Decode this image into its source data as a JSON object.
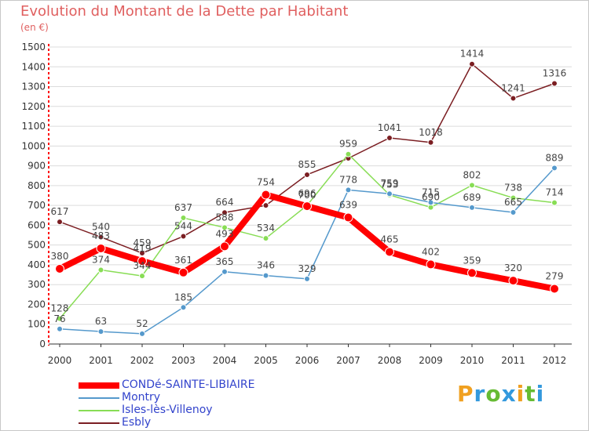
{
  "title": "Evolution du Montant de la Dette par Habitant",
  "subtitle": "(en €)",
  "brand": {
    "letters": [
      "P",
      "r",
      "o",
      "x",
      "i",
      "t",
      "i"
    ],
    "colors": [
      "#f0a020",
      "#3399dd",
      "#66bb33",
      "#3399dd",
      "#f0a020",
      "#66bb33",
      "#3399dd"
    ]
  },
  "chart_data": {
    "type": "line",
    "x": [
      "2000",
      "2001",
      "2002",
      "2003",
      "2004",
      "2005",
      "2006",
      "2007",
      "2008",
      "2009",
      "2010",
      "2011",
      "2012"
    ],
    "ylim": [
      0,
      1500
    ],
    "yticks": [
      0,
      100,
      200,
      300,
      400,
      500,
      600,
      700,
      800,
      900,
      1000,
      1100,
      1200,
      1300,
      1400,
      1500
    ],
    "grid": "horizontal",
    "legend_position": "bottom-left",
    "series": [
      {
        "name": "Esbly",
        "color": "#7b1e22",
        "width": 1.5,
        "values": [
          617,
          540,
          459,
          544,
          664,
          700,
          855,
          938,
          1041,
          1018,
          1414,
          1241,
          1316
        ],
        "labels": [
          "617",
          "540",
          "459",
          "544",
          "664",
          "",
          "855",
          "",
          "1041",
          "1018",
          "1414",
          "1241",
          "1316"
        ]
      },
      {
        "name": "Isles-lès-Villenoy",
        "color": "#88dd55",
        "width": 1.5,
        "values": [
          128,
          374,
          344,
          637,
          588,
          534,
          700,
          959,
          753,
          690,
          802,
          738,
          714
        ],
        "labels": [
          "128",
          "374",
          "344",
          "637",
          "588",
          "534",
          "700",
          "959",
          "753",
          "690",
          "802",
          "738",
          "714"
        ]
      },
      {
        "name": "Montry",
        "color": "#5599cc",
        "width": 1.5,
        "values": [
          76,
          63,
          52,
          185,
          365,
          346,
          329,
          778,
          759,
          715,
          689,
          665,
          889
        ],
        "labels": [
          "76",
          "63",
          "52",
          "185",
          "365",
          "346",
          "329",
          "778",
          "759",
          "715",
          "689",
          "665",
          "889"
        ]
      },
      {
        "name": "CONDé-SAINTE-LIBIAIRE",
        "color": "#ff0000",
        "width": 8,
        "values": [
          380,
          483,
          419,
          361,
          493,
          754,
          696,
          639,
          465,
          402,
          359,
          320,
          279
        ],
        "labels": [
          "380",
          "483",
          "419",
          "361",
          "493",
          "754",
          "696",
          "639",
          "465",
          "402",
          "359",
          "320",
          "279"
        ]
      }
    ],
    "legend_order": [
      "CONDé-SAINTE-LIBIAIRE",
      "Montry",
      "Isles-lès-Villenoy",
      "Esbly"
    ]
  }
}
